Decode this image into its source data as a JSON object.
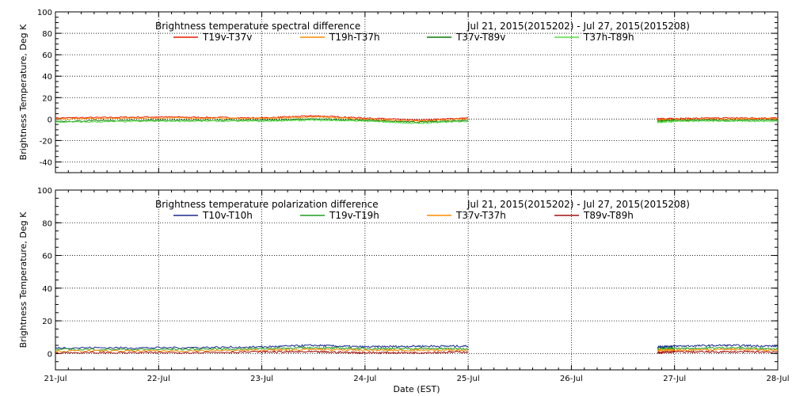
{
  "figure": {
    "xlabel": "Date (EST)",
    "x_tick_labels": [
      "21-Jul",
      "22-Jul",
      "23-Jul",
      "24-Jul",
      "25-Jul",
      "26-Jul",
      "27-Jul",
      "28-Jul"
    ]
  },
  "chart_data": [
    {
      "type": "line",
      "title": "Brightness temperature spectral difference",
      "date_range": "Jul 21, 2015(2015202) - Jul 27, 2015(2015208)",
      "xlabel": "",
      "ylabel": "Brightness Temperature, Deg K",
      "xlim": [
        "2015-07-21",
        "2015-07-28"
      ],
      "ylim": [
        -50,
        100
      ],
      "y_ticks": [
        -40,
        -20,
        0,
        20,
        40,
        60,
        80,
        100
      ],
      "y_tick_labels": [
        "-40",
        "-20",
        "0",
        "20",
        "40",
        "60",
        "80",
        "100"
      ],
      "grid": true,
      "legend": "top",
      "data_gaps": [
        [
          "2015-07-25",
          "2015-07-26T20:00"
        ]
      ],
      "series": [
        {
          "name": "T19v-T37v",
          "color": "#e81a00",
          "x": [
            "2015-07-21",
            "2015-07-22",
            "2015-07-23",
            "2015-07-23T12:00",
            "2015-07-24",
            "2015-07-24T12:00",
            "2015-07-25",
            "2015-07-26T20:00",
            "2015-07-27",
            "2015-07-27T12:00",
            "2015-07-28"
          ],
          "values": [
            1,
            2,
            1,
            3,
            1,
            -1,
            1,
            0,
            0.5,
            1,
            1
          ]
        },
        {
          "name": "T19h-T37h",
          "color": "#ff8c00",
          "x": [
            "2015-07-21",
            "2015-07-22",
            "2015-07-23",
            "2015-07-23T12:00",
            "2015-07-24",
            "2015-07-24T12:00",
            "2015-07-25",
            "2015-07-26T20:00",
            "2015-07-27",
            "2015-07-27T12:00",
            "2015-07-28"
          ],
          "values": [
            0,
            1,
            0.5,
            2,
            0,
            -2,
            0,
            -1,
            -0.5,
            0,
            0
          ]
        },
        {
          "name": "T37v-T89v",
          "color": "#0a7a0a",
          "x": [
            "2015-07-21",
            "2015-07-22",
            "2015-07-23",
            "2015-07-23T12:00",
            "2015-07-24",
            "2015-07-24T12:00",
            "2015-07-25",
            "2015-07-26T20:00",
            "2015-07-27",
            "2015-07-27T12:00",
            "2015-07-28"
          ],
          "values": [
            -2,
            -1,
            -1,
            0,
            -1,
            -3,
            -1,
            -2,
            -1,
            -1,
            -1
          ]
        },
        {
          "name": "T37h-T89h",
          "color": "#55dd44",
          "x": [
            "2015-07-21",
            "2015-07-22",
            "2015-07-23",
            "2015-07-23T12:00",
            "2015-07-24",
            "2015-07-24T12:00",
            "2015-07-25",
            "2015-07-26T20:00",
            "2015-07-27",
            "2015-07-27T12:00",
            "2015-07-28"
          ],
          "values": [
            -3,
            -2,
            -2,
            -1,
            -2,
            -4,
            -2,
            -3,
            -2,
            -2,
            -2
          ]
        }
      ]
    },
    {
      "type": "line",
      "title": "Brightness temperature polarization difference",
      "date_range": "Jul 21, 2015(2015202) - Jul 27, 2015(2015208)",
      "xlabel": "Date (EST)",
      "ylabel": "Brightness Temperature, Deg K",
      "xlim": [
        "2015-07-21",
        "2015-07-28"
      ],
      "ylim": [
        -10,
        100
      ],
      "y_ticks": [
        0,
        20,
        40,
        60,
        80,
        100
      ],
      "y_tick_labels": [
        "0",
        "20",
        "40",
        "60",
        "80",
        "100"
      ],
      "grid": true,
      "legend": "top",
      "data_gaps": [
        [
          "2015-07-25",
          "2015-07-26T20:00"
        ]
      ],
      "series": [
        {
          "name": "T10v-T10h",
          "color": "#1a2a8c",
          "x": [
            "2015-07-21",
            "2015-07-22",
            "2015-07-23",
            "2015-07-23T12:00",
            "2015-07-24",
            "2015-07-24T12:00",
            "2015-07-25",
            "2015-07-26T20:00",
            "2015-07-27",
            "2015-07-27T12:00",
            "2015-07-28"
          ],
          "values": [
            3.5,
            3.5,
            4,
            5,
            4,
            4.5,
            4.5,
            4,
            4.5,
            5,
            4.5
          ]
        },
        {
          "name": "T19v-T19h",
          "color": "#1f9e1f",
          "x": [
            "2015-07-21",
            "2015-07-22",
            "2015-07-23",
            "2015-07-23T12:00",
            "2015-07-24",
            "2015-07-24T12:00",
            "2015-07-25",
            "2015-07-26T20:00",
            "2015-07-27",
            "2015-07-27T12:00",
            "2015-07-28"
          ],
          "values": [
            2.5,
            2.5,
            3,
            3.5,
            3,
            3,
            3,
            3,
            3,
            3.5,
            3
          ]
        },
        {
          "name": "T37v-T37h",
          "color": "#ff8c00",
          "x": [
            "2015-07-21",
            "2015-07-22",
            "2015-07-23",
            "2015-07-23T12:00",
            "2015-07-24",
            "2015-07-24T12:00",
            "2015-07-25",
            "2015-07-26T20:00",
            "2015-07-27",
            "2015-07-27T12:00",
            "2015-07-28"
          ],
          "values": [
            1.5,
            1.5,
            2,
            2.5,
            2,
            2,
            2,
            2,
            2,
            2.5,
            2
          ]
        },
        {
          "name": "T89v-T89h",
          "color": "#a01010",
          "x": [
            "2015-07-21",
            "2015-07-22",
            "2015-07-23",
            "2015-07-23T12:00",
            "2015-07-24",
            "2015-07-24T12:00",
            "2015-07-25",
            "2015-07-26T20:00",
            "2015-07-27",
            "2015-07-27T12:00",
            "2015-07-28"
          ],
          "values": [
            0.5,
            0.5,
            1,
            1,
            0.5,
            0.5,
            1,
            0.5,
            1,
            1,
            1
          ]
        }
      ]
    }
  ]
}
